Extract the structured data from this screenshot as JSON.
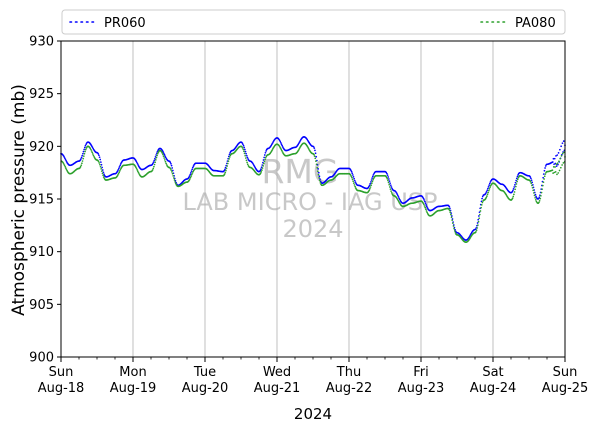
{
  "chart_data": {
    "type": "scatter",
    "xlabel": "2024",
    "ylabel": "Atmospheric pressure (mb)",
    "ylim": [
      900,
      930
    ],
    "yticks": [
      900,
      905,
      910,
      915,
      920,
      925,
      930
    ],
    "xlim": [
      "2024-08-18",
      "2024-08-25"
    ],
    "xticks": [
      {
        "date": "2024-08-18",
        "day": "Sun",
        "date_label": "Aug-18"
      },
      {
        "date": "2024-08-19",
        "day": "Mon",
        "date_label": "Aug-19"
      },
      {
        "date": "2024-08-20",
        "day": "Tue",
        "date_label": "Aug-20"
      },
      {
        "date": "2024-08-21",
        "day": "Wed",
        "date_label": "Aug-21"
      },
      {
        "date": "2024-08-22",
        "day": "Thu",
        "date_label": "Aug-22"
      },
      {
        "date": "2024-08-23",
        "day": "Fri",
        "date_label": "Aug-23"
      },
      {
        "date": "2024-08-24",
        "day": "Sat",
        "date_label": "Aug-24"
      },
      {
        "date": "2024-08-25",
        "day": "Sun",
        "date_label": "Aug-25"
      }
    ],
    "grid": "vertical-major",
    "legend_placement": "top",
    "watermark": [
      "RMG",
      "LAB MICRO - IAG USP",
      "2024"
    ],
    "series": [
      {
        "name": "PR060",
        "color": "#0000ff",
        "x": [
          "2024-08-18 00:00",
          "2024-08-18 03:00",
          "2024-08-18 06:00",
          "2024-08-18 09:00",
          "2024-08-18 12:00",
          "2024-08-18 15:00",
          "2024-08-18 18:00",
          "2024-08-18 21:00",
          "2024-08-19 00:00",
          "2024-08-19 03:00",
          "2024-08-19 06:00",
          "2024-08-19 09:00",
          "2024-08-19 12:00",
          "2024-08-19 15:00",
          "2024-08-19 18:00",
          "2024-08-19 21:00",
          "2024-08-20 00:00",
          "2024-08-20 03:00",
          "2024-08-20 06:00",
          "2024-08-20 09:00",
          "2024-08-20 12:00",
          "2024-08-20 15:00",
          "2024-08-20 18:00",
          "2024-08-20 21:00",
          "2024-08-21 00:00",
          "2024-08-21 03:00",
          "2024-08-21 06:00",
          "2024-08-21 09:00",
          "2024-08-21 12:00",
          "2024-08-21 15:00",
          "2024-08-21 18:00",
          "2024-08-21 21:00",
          "2024-08-22 00:00",
          "2024-08-22 03:00",
          "2024-08-22 06:00",
          "2024-08-22 09:00",
          "2024-08-22 12:00",
          "2024-08-22 15:00",
          "2024-08-22 18:00",
          "2024-08-22 21:00",
          "2024-08-23 00:00",
          "2024-08-23 03:00",
          "2024-08-23 06:00",
          "2024-08-23 09:00",
          "2024-08-23 12:00",
          "2024-08-23 15:00",
          "2024-08-23 18:00",
          "2024-08-23 21:00",
          "2024-08-24 00:00",
          "2024-08-24 03:00",
          "2024-08-24 06:00",
          "2024-08-24 09:00",
          "2024-08-24 12:00",
          "2024-08-24 15:00",
          "2024-08-24 18:00",
          "2024-08-24 21:00",
          "2024-08-25 00:00"
        ],
        "y": [
          919.3,
          918.2,
          918.6,
          920.4,
          919.4,
          917.1,
          917.4,
          918.7,
          918.9,
          917.8,
          918.2,
          919.8,
          918.6,
          916.3,
          916.9,
          918.4,
          918.4,
          917.7,
          917.6,
          919.6,
          920.4,
          918.6,
          917.6,
          919.8,
          920.8,
          919.6,
          919.9,
          920.9,
          920.0,
          916.5,
          917.1,
          917.9,
          917.9,
          916.3,
          916.0,
          917.6,
          917.6,
          915.8,
          914.6,
          915.1,
          915.3,
          913.9,
          914.3,
          914.4,
          911.8,
          911.1,
          912.1,
          915.4,
          916.9,
          916.4,
          915.6,
          917.5,
          917.2,
          915.0,
          918.3,
          918.6,
          920.1
        ]
      },
      {
        "name": "PA080",
        "color": "#2ca02c",
        "x": [
          "2024-08-18 00:00",
          "2024-08-18 03:00",
          "2024-08-18 06:00",
          "2024-08-18 09:00",
          "2024-08-18 12:00",
          "2024-08-18 15:00",
          "2024-08-18 18:00",
          "2024-08-18 21:00",
          "2024-08-19 00:00",
          "2024-08-19 03:00",
          "2024-08-19 06:00",
          "2024-08-19 09:00",
          "2024-08-19 12:00",
          "2024-08-19 15:00",
          "2024-08-19 18:00",
          "2024-08-19 21:00",
          "2024-08-20 00:00",
          "2024-08-20 03:00",
          "2024-08-20 06:00",
          "2024-08-20 09:00",
          "2024-08-20 12:00",
          "2024-08-20 15:00",
          "2024-08-20 18:00",
          "2024-08-20 21:00",
          "2024-08-21 00:00",
          "2024-08-21 03:00",
          "2024-08-21 06:00",
          "2024-08-21 09:00",
          "2024-08-21 12:00",
          "2024-08-21 15:00",
          "2024-08-21 18:00",
          "2024-08-21 21:00",
          "2024-08-22 00:00",
          "2024-08-22 03:00",
          "2024-08-22 06:00",
          "2024-08-22 09:00",
          "2024-08-22 12:00",
          "2024-08-22 15:00",
          "2024-08-22 18:00",
          "2024-08-22 21:00",
          "2024-08-23 00:00",
          "2024-08-23 03:00",
          "2024-08-23 06:00",
          "2024-08-23 09:00",
          "2024-08-23 12:00",
          "2024-08-23 15:00",
          "2024-08-23 18:00",
          "2024-08-23 21:00",
          "2024-08-24 00:00",
          "2024-08-24 03:00",
          "2024-08-24 06:00",
          "2024-08-24 09:00",
          "2024-08-24 12:00",
          "2024-08-24 15:00",
          "2024-08-24 18:00",
          "2024-08-24 21:00",
          "2024-08-25 00:00"
        ],
        "y": [
          918.6,
          917.4,
          917.9,
          920.0,
          918.7,
          916.8,
          917.0,
          918.2,
          918.3,
          917.1,
          917.6,
          919.6,
          918.0,
          916.2,
          916.6,
          917.9,
          917.9,
          917.2,
          917.2,
          919.3,
          920.0,
          918.0,
          917.3,
          919.2,
          920.2,
          919.1,
          919.3,
          920.3,
          919.3,
          916.3,
          916.8,
          917.4,
          917.4,
          915.8,
          915.6,
          917.2,
          917.2,
          915.3,
          914.3,
          914.6,
          914.8,
          913.4,
          913.9,
          914.1,
          911.6,
          910.9,
          911.8,
          914.9,
          916.5,
          915.8,
          914.9,
          917.2,
          916.8,
          914.6,
          917.6,
          917.8,
          919.0
        ]
      }
    ]
  }
}
